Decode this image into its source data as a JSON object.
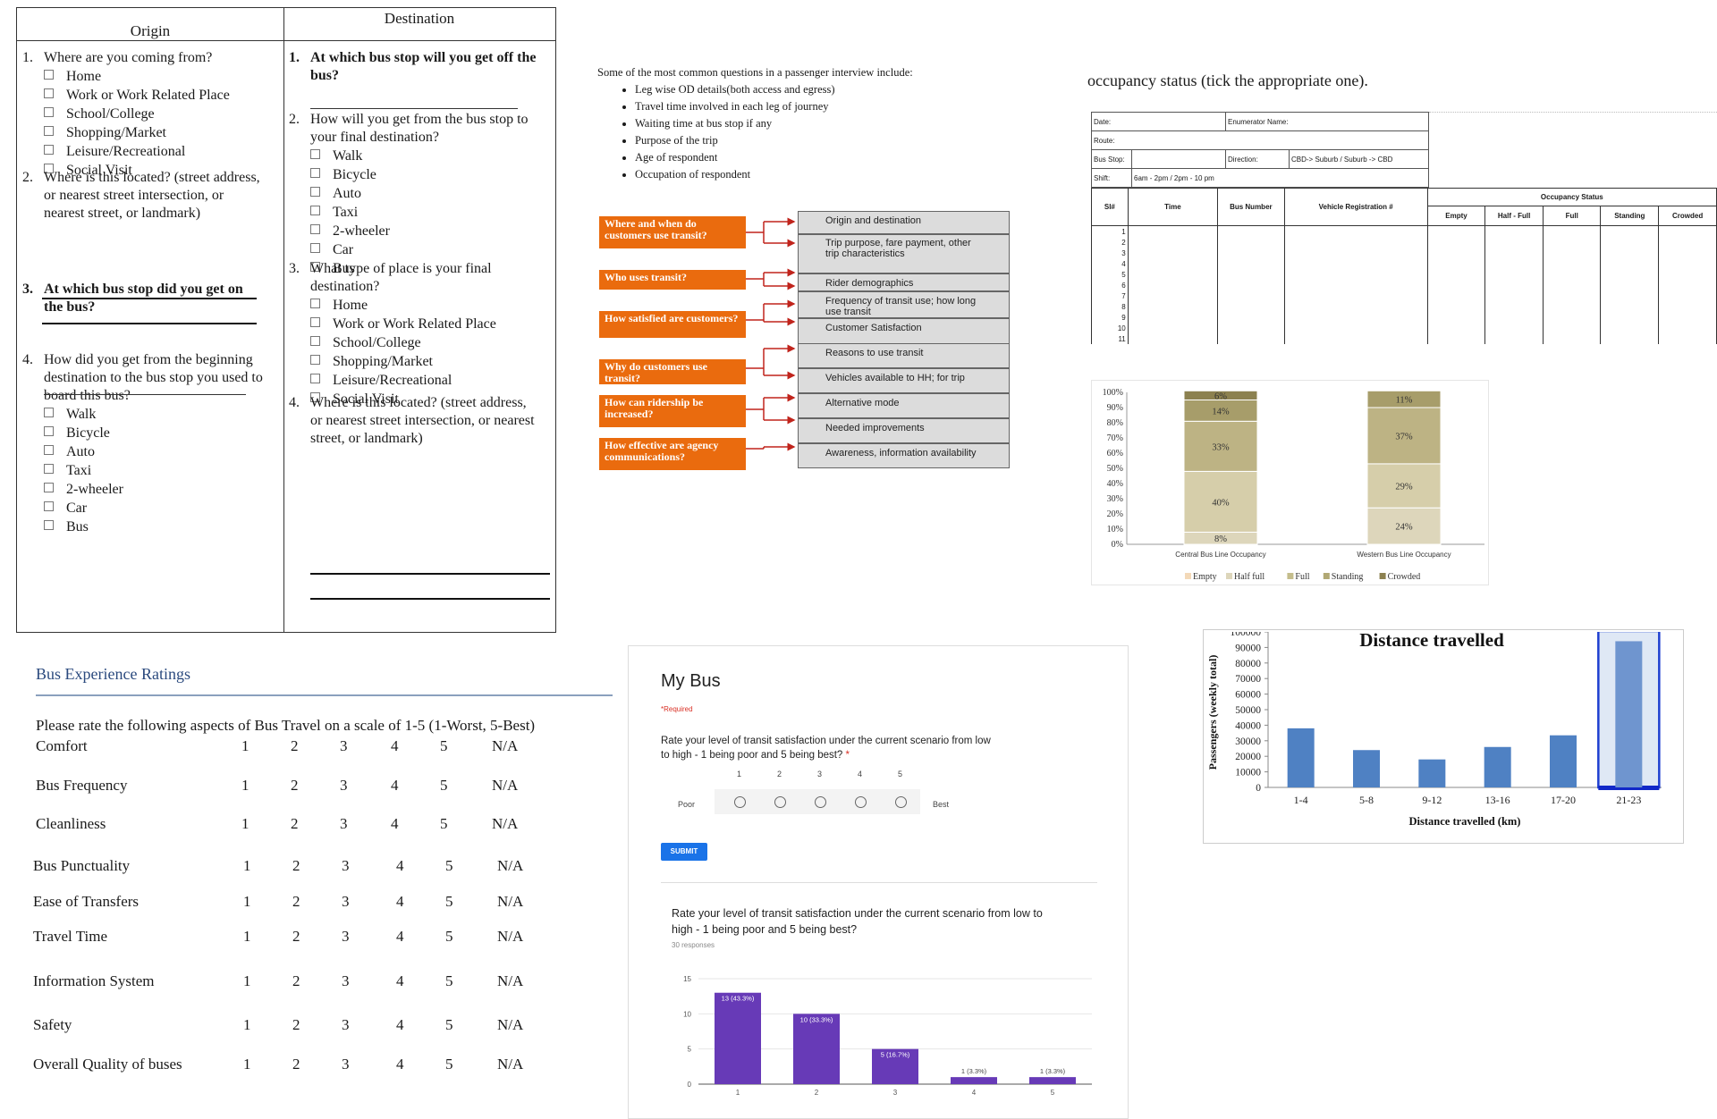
{
  "od_survey": {
    "origin_header": "Origin",
    "destination_header": "Destination",
    "origin_questions": [
      {
        "num": "1.",
        "text": "Where are you coming from?",
        "bold": false,
        "options": [
          "Home",
          "Work or Work Related Place",
          "School/College",
          "Shopping/Market",
          "Leisure/Recreational",
          "Social Visit"
        ]
      },
      {
        "num": "2.",
        "text": "Where is this located? (street address, or nearest street intersection, or nearest street, or landmark)",
        "bold": false,
        "options": []
      },
      {
        "num": "3.",
        "text": "At which bus stop did you get on the bus?",
        "bold": true,
        "options": []
      },
      {
        "num": "4.",
        "text": "How did you get from the beginning destination to the bus stop you used to board this bus?",
        "bold": false,
        "options": [
          "Walk",
          "Bicycle",
          "Auto",
          "Taxi",
          "2-wheeler",
          "Car",
          "Bus"
        ]
      }
    ],
    "destination_questions": [
      {
        "num": "1.",
        "text": "At which bus stop will you get off the bus?",
        "bold": true,
        "options": []
      },
      {
        "num": "2.",
        "text": "How will you get from the bus stop to your final destination?",
        "bold": false,
        "options": [
          "Walk",
          "Bicycle",
          "Auto",
          "Taxi",
          "2-wheeler",
          "Car",
          "Bus"
        ]
      },
      {
        "num": "3.",
        "text": "What type of place is your final destination?",
        "bold": false,
        "options": [
          "Home",
          "Work or Work Related Place",
          "School/College",
          "Shopping/Market",
          "Leisure/Recreational",
          "Social Visit"
        ]
      },
      {
        "num": "4.",
        "text": "Where is this located? (street address, or nearest street intersection, or nearest street, or landmark)",
        "bold": false,
        "options": []
      }
    ]
  },
  "interview": {
    "intro": "Some of the most common questions in a passenger interview include:",
    "bullets": [
      "Leg wise OD details(both access and egress)",
      "Travel time involved in each leg of journey",
      "Waiting time at bus stop if any",
      "Purpose of the trip",
      "Age of respondent",
      "Occupation of respondent"
    ],
    "orange_questions": [
      "Where and when do customers use transit?",
      "Who uses transit?",
      "How satisfied are customers?",
      "Why do customers use transit?",
      "How can ridership be increased?",
      "How effective are agency communications?"
    ],
    "gray_items": [
      "Origin and destination",
      "Trip purpose, fare payment, other trip characteristics",
      "Rider demographics",
      "Frequency of transit use; how long use transit",
      "Customer Satisfaction",
      "Reasons to use transit",
      "Vehicles available to HH; for trip",
      "Alternative mode",
      "Needed improvements",
      "Awareness, information availability"
    ],
    "colors": {
      "orange": "#ea6b0e",
      "gray": "#dcdcdc",
      "arrow": "#c0241c"
    }
  },
  "occupancy": {
    "title": "occupancy status (tick the appropriate one).",
    "form_fields": {
      "date": "Date:",
      "enumerator": "Enumerator Name:",
      "route": "Route:",
      "bus_stop": "Bus Stop:",
      "direction": "Direction:",
      "direction_value": "CBD-> Suburb  /  Suburb -> CBD",
      "shift": "Shift:",
      "shift_value": "6am - 2pm  /  2pm - 10 pm"
    },
    "columns": [
      "Sl#",
      "Time",
      "Bus Number",
      "Vehicle Registration #"
    ],
    "status_group": "Occupancy Status",
    "status_columns": [
      "Empty",
      "Half - Full",
      "Full",
      "Standing",
      "Crowded"
    ],
    "row_numbers": [
      "1",
      "2",
      "3",
      "4",
      "5",
      "6",
      "7",
      "8",
      "9",
      "10",
      "11"
    ]
  },
  "occupancy_chart": {
    "chart_data": {
      "type": "bar",
      "stacked": true,
      "categories": [
        "Central Bus Line Occupancy",
        "Western Bus Line Occupancy"
      ],
      "series": [
        {
          "name": "Empty",
          "values": [
            0,
            0
          ],
          "labels": [
            "",
            ""
          ],
          "color": "#f3d9b8"
        },
        {
          "name": "Half full",
          "values": [
            8,
            24
          ],
          "labels": [
            "8%",
            "24%"
          ],
          "color": "#ddd6bb"
        },
        {
          "name": "Full",
          "values": [
            40,
            29
          ],
          "labels": [
            "40%",
            "29%"
          ],
          "color": "#d6ceaa"
        },
        {
          "name": "Standing",
          "values": [
            33,
            37
          ],
          "labels": [
            "33%",
            "37%"
          ],
          "color": "#bdb384"
        },
        {
          "name": "Crowded",
          "values": [
            14,
            11
          ],
          "labels": [
            "14%",
            "11%"
          ],
          "color": "#a79d6a"
        },
        {
          "name": "",
          "values": [
            6,
            0
          ],
          "labels": [
            "6%",
            ""
          ],
          "color": "#8c8150"
        }
      ],
      "ylim": [
        0,
        100
      ],
      "yticks": [
        "0%",
        "10%",
        "20%",
        "30%",
        "40%",
        "50%",
        "60%",
        "70%",
        "80%",
        "90%",
        "100%"
      ],
      "legend": [
        "Empty",
        "Half full",
        "Full",
        "Standing",
        "Crowded"
      ],
      "legend_colors": [
        "#f3d9b8",
        "#ddd6bb",
        "#c4bd8c",
        "#b1a874",
        "#8c8150"
      ],
      "legend_position": "bottom"
    }
  },
  "ratings": {
    "title": "Bus Experience Ratings",
    "instruction": "Please rate the following aspects of Bus Travel on a scale of 1-5 (1-Worst, 5-Best)",
    "scale": [
      "1",
      "2",
      "3",
      "4",
      "5",
      "N/A"
    ],
    "items": [
      "Comfort",
      "Bus Frequency",
      "Cleanliness",
      "Bus Punctuality",
      "Ease of Transfers",
      "Travel Time",
      "Information System",
      "Safety",
      "Overall Quality of buses"
    ]
  },
  "form": {
    "title": "My Bus",
    "required": "*Required",
    "question": "Rate your level of transit satisfaction under the current scenario from low to high - 1 being poor and 5 being best?",
    "asterisk": "*",
    "scale": [
      "1",
      "2",
      "3",
      "4",
      "5"
    ],
    "low_label": "Poor",
    "high_label": "Best",
    "submit": "SUBMIT",
    "result_question": "Rate your level of transit satisfaction under the current scenario from low to high - 1 being poor and 5 being best?",
    "responses": "30 responses",
    "chart_data": {
      "type": "bar",
      "categories": [
        "1",
        "2",
        "3",
        "4",
        "5"
      ],
      "values": [
        13,
        10,
        5,
        1,
        1
      ],
      "labels": [
        "13 (43.3%)",
        "10 (33.3%)",
        "5 (16.7%)",
        "1 (3.3%)",
        "1 (3.3%)"
      ],
      "yticks": [
        "0",
        "5",
        "10",
        "15"
      ],
      "ylim": [
        0,
        15
      ],
      "color": "#673ab7"
    }
  },
  "distance": {
    "chart_data": {
      "type": "bar",
      "title": "Distance travelled",
      "xlabel": "Distance travelled (km)",
      "ylabel": "Passengers (weekly total)",
      "categories": [
        "1-4",
        "5-8",
        "9-12",
        "13-16",
        "17-20",
        "21-23"
      ],
      "values": [
        38000,
        24000,
        18000,
        26000,
        33500,
        94000
      ],
      "yticks": [
        "0",
        "10000",
        "20000",
        "30000",
        "40000",
        "50000",
        "60000",
        "70000",
        "80000",
        "90000",
        "100000"
      ],
      "ylim": [
        0,
        100000
      ],
      "highlighted": "21-23",
      "color": "#4f81c3",
      "highlight_color": "#6f95cf"
    }
  }
}
